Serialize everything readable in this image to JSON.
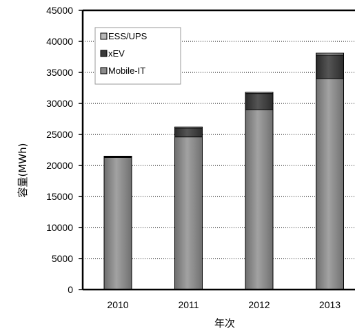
{
  "chart_data": {
    "type": "bar",
    "stacked": true,
    "categories": [
      "2010",
      "2011",
      "2012",
      "2013"
    ],
    "series": [
      {
        "name": "Mobile-IT",
        "values": [
          21300,
          24600,
          29000,
          34000
        ],
        "color": "#8c8c8c"
      },
      {
        "name": "xEV",
        "values": [
          100,
          1400,
          2600,
          3800
        ],
        "color": "#3a3a3a"
      },
      {
        "name": "ESS/UPS",
        "values": [
          100,
          200,
          200,
          300
        ],
        "color": "#b8b8b8"
      }
    ],
    "legend_order": [
      "ESS/UPS",
      "xEV",
      "Mobile-IT"
    ],
    "legend_position": "top-left",
    "xlabel": "年次",
    "ylabel": "容量(MWh)",
    "ylim": [
      0,
      45000
    ],
    "ytick_step": 5000,
    "ytick_labels": [
      "0",
      "5000",
      "10000",
      "15000",
      "20000",
      "25000",
      "30000",
      "35000",
      "40000",
      "45000"
    ],
    "grid": "horizontal dotted"
  }
}
